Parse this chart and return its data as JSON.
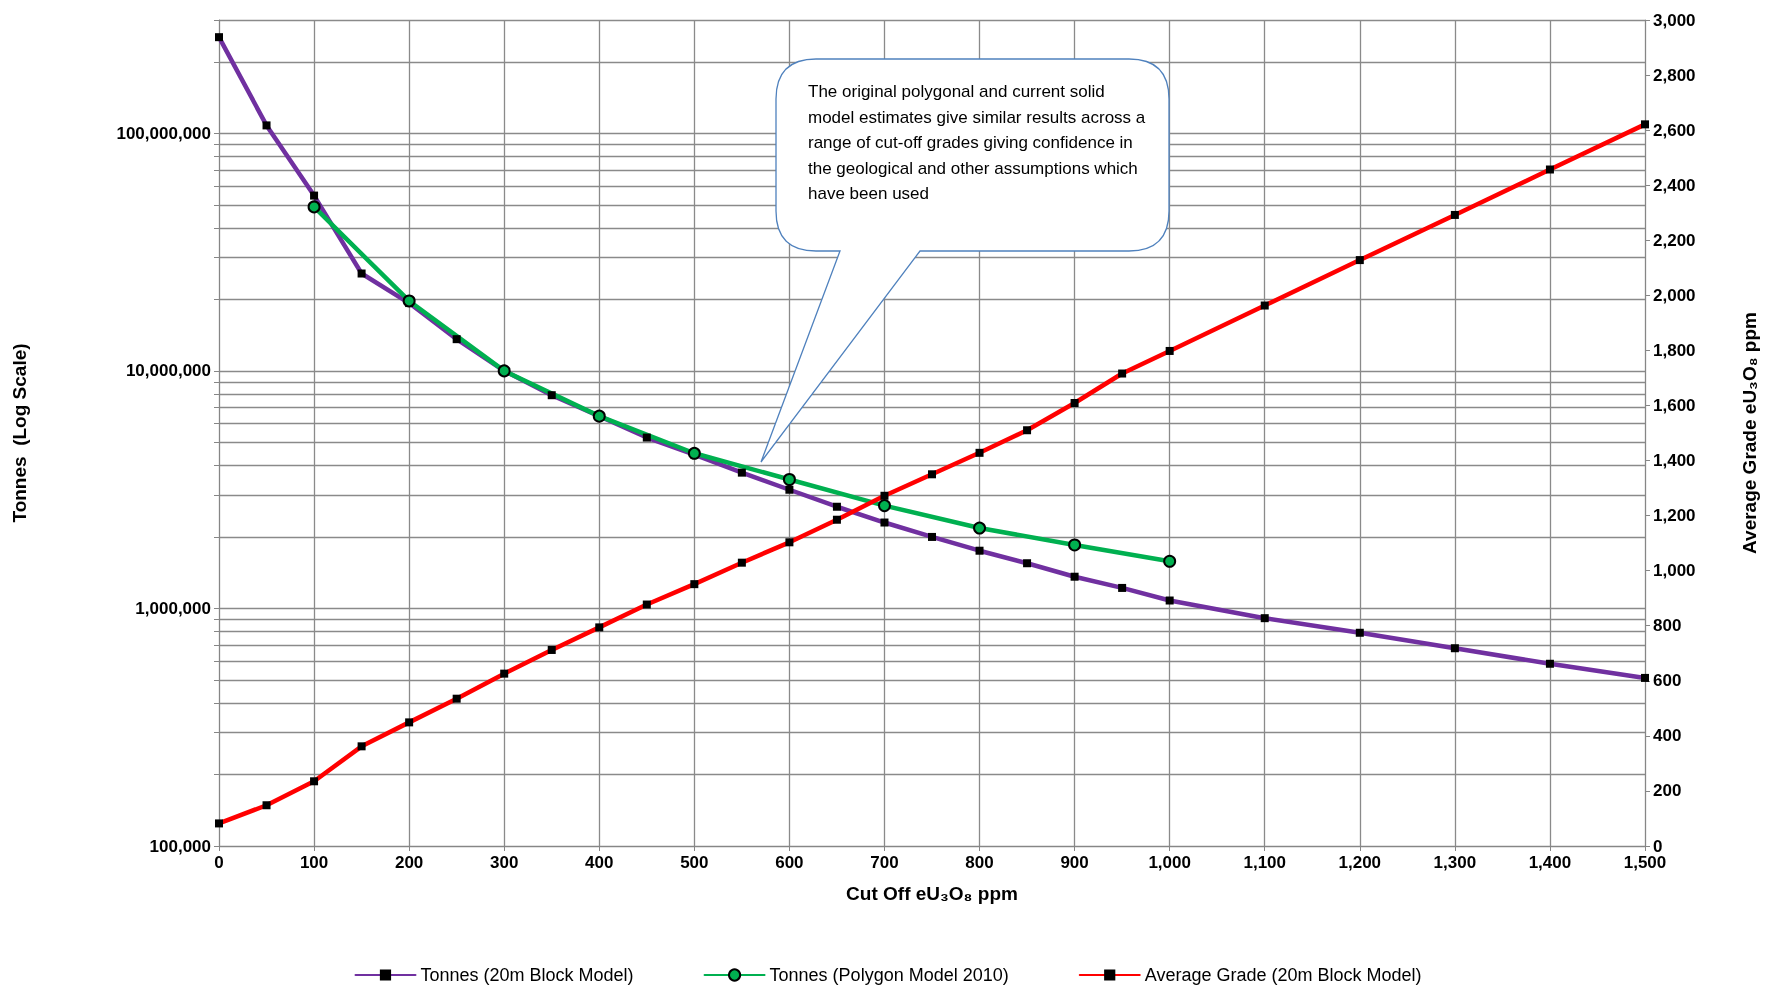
{
  "chart_data": {
    "type": "line",
    "xlabel": "Cut Off eU₃O₈ ppm",
    "ylabel": "Tonnes  (Log Scale)",
    "y2label": "Average Grade eU₃O₈ ppm",
    "annotations": [
      "The original polygonal and current solid model estimates give similar results across a range of cut-off grades giving confidence in the geological and other assumptions which have been used"
    ],
    "log": "y",
    "grid": true,
    "legend": "bottom",
    "xlim": [
      0,
      1500
    ],
    "xticks": [
      0,
      100,
      200,
      300,
      400,
      500,
      600,
      700,
      800,
      900,
      {
        "value": 1000,
        "label": "1,000"
      },
      {
        "value": 1100,
        "label": "1,100"
      },
      {
        "value": 1200,
        "label": "1,200"
      },
      {
        "value": 1300,
        "label": "1,300"
      },
      {
        "value": 1400,
        "label": "1,400"
      },
      {
        "value": 1500,
        "label": "1,500"
      }
    ],
    "ylim": [
      100000,
      300000000
    ],
    "yticks": [
      {
        "value": 100000,
        "label": "100,000"
      },
      {
        "value": 200000,
        "label": null
      },
      {
        "value": 300000,
        "label": null
      },
      {
        "value": 400000,
        "label": null
      },
      {
        "value": 500000,
        "label": null
      },
      {
        "value": 600000,
        "label": null
      },
      {
        "value": 700000,
        "label": null
      },
      {
        "value": 800000,
        "label": null
      },
      {
        "value": 900000,
        "label": null
      },
      {
        "value": 1000000,
        "label": "1,000,000"
      },
      {
        "value": 2000000,
        "label": null
      },
      {
        "value": 3000000,
        "label": null
      },
      {
        "value": 4000000,
        "label": null
      },
      {
        "value": 5000000,
        "label": null
      },
      {
        "value": 6000000,
        "label": null
      },
      {
        "value": 7000000,
        "label": null
      },
      {
        "value": 8000000,
        "label": null
      },
      {
        "value": 9000000,
        "label": null
      },
      {
        "value": 10000000,
        "label": "10,000,000"
      },
      {
        "value": 20000000,
        "label": null
      },
      {
        "value": 30000000,
        "label": null
      },
      {
        "value": 40000000,
        "label": null
      },
      {
        "value": 50000000,
        "label": null
      },
      {
        "value": 60000000,
        "label": null
      },
      {
        "value": 70000000,
        "label": null
      },
      {
        "value": 80000000,
        "label": null
      },
      {
        "value": 90000000,
        "label": null
      },
      {
        "value": 100000000,
        "label": "100,000,000"
      },
      {
        "value": 200000000,
        "label": null
      },
      {
        "value": 300000000,
        "label": null
      }
    ],
    "y2lim": [
      0,
      3000
    ],
    "y2ticks": [
      {
        "value": 0,
        "label": "0"
      },
      {
        "value": 200,
        "label": "200"
      },
      {
        "value": 400,
        "label": "400"
      },
      {
        "value": 600,
        "label": "600"
      },
      {
        "value": 800,
        "label": "800"
      },
      {
        "value": 1000,
        "label": "1,000"
      },
      {
        "value": 1200,
        "label": "1,200"
      },
      {
        "value": 1400,
        "label": "1,400"
      },
      {
        "value": 1600,
        "label": "1,600"
      },
      {
        "value": 1800,
        "label": "1,800"
      },
      {
        "value": 2000,
        "label": "2,000"
      },
      {
        "value": 2200,
        "label": "2,200"
      },
      {
        "value": 2400,
        "label": "2,400"
      },
      {
        "value": 2600,
        "label": "2,600"
      },
      {
        "value": 2800,
        "label": "2,800"
      },
      {
        "value": 3000,
        "label": "3,000"
      }
    ],
    "series": [
      {
        "name": "Tonnes (20m Block Model)",
        "color": "#7030a0",
        "marker": "square",
        "x": [
          0,
          50,
          100,
          150,
          200,
          250,
          300,
          350,
          400,
          450,
          500,
          550,
          600,
          650,
          700,
          750,
          800,
          850,
          900,
          950,
          1000,
          1100,
          1200,
          1300,
          1400,
          1500
        ],
        "values": [
          254000000,
          108000000,
          54700000,
          25700000,
          19300000,
          13600000,
          10000000,
          7900000,
          6450000,
          5240000,
          4440000,
          3730000,
          3160000,
          2680000,
          2300000,
          2000000,
          1750000,
          1550000,
          1360000,
          1220000,
          1080000,
          910000,
          790000,
          680000,
          585000,
          510000
        ]
      },
      {
        "name": "Tonnes (Polygon Model 2010)",
        "color": "#00b050",
        "marker": "circle",
        "x": [
          100,
          200,
          300,
          400,
          500,
          600,
          700,
          800,
          900,
          1000
        ],
        "values": [
          49000000,
          19700000,
          10000000,
          6450000,
          4500000,
          3490000,
          2710000,
          2180000,
          1850000,
          1580000
        ]
      },
      {
        "name": "Average Grade (20m Block Model)",
        "color": "#ff0000",
        "marker": "square",
        "axis": "y2",
        "x": [
          0,
          50,
          100,
          150,
          200,
          250,
          300,
          350,
          400,
          450,
          500,
          550,
          600,
          650,
          700,
          750,
          800,
          850,
          900,
          950,
          1000,
          1100,
          1200,
          1300,
          1400,
          1500
        ],
        "values": [
          82,
          148,
          235,
          362,
          449,
          535,
          626,
          712,
          794,
          877,
          951,
          1029,
          1103,
          1185,
          1272,
          1350,
          1428,
          1510,
          1609,
          1716,
          1798,
          1963,
          2128,
          2292,
          2457,
          2621
        ]
      }
    ]
  }
}
